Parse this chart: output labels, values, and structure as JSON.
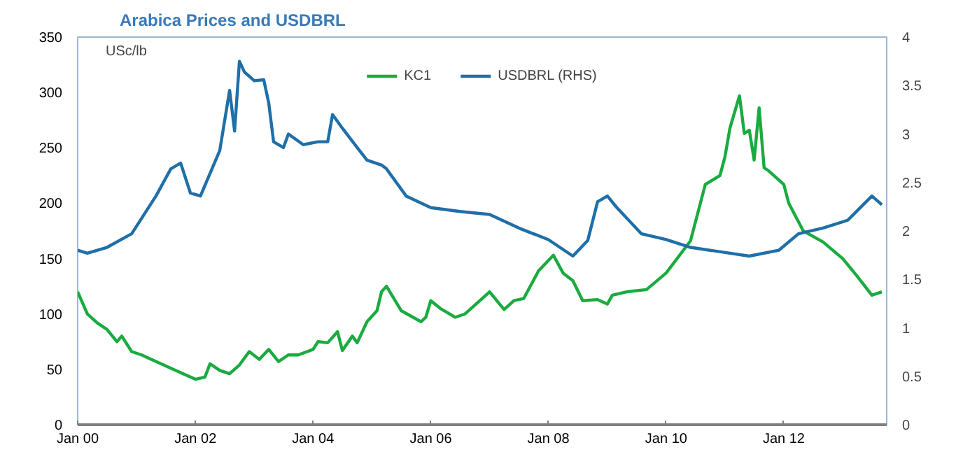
{
  "chart_data": {
    "type": "line",
    "title": "Arabica Prices and USDBRL",
    "ylabel": "USc/lb",
    "xlim": [
      "2000-01",
      "2013-10"
    ],
    "xticks": [
      {
        "value": "2000-01",
        "label": "Jan 00"
      },
      {
        "value": "2002-01",
        "label": "Jan 02"
      },
      {
        "value": "2004-01",
        "label": "Jan 04"
      },
      {
        "value": "2006-01",
        "label": "Jan 06"
      },
      {
        "value": "2008-01",
        "label": "Jan 08"
      },
      {
        "value": "2010-01",
        "label": "Jan 10"
      },
      {
        "value": "2012-01",
        "label": "Jan 12"
      }
    ],
    "ylim": [
      0,
      350
    ],
    "yticks": [
      0,
      50,
      100,
      150,
      200,
      250,
      300,
      350
    ],
    "y2lim": [
      0,
      4
    ],
    "y2ticks": [
      0,
      0.5,
      1,
      1.5,
      2,
      2.5,
      3,
      3.5,
      4
    ],
    "grid": false,
    "legend": "top",
    "marker": "none",
    "line_style": "solid",
    "series": [
      {
        "name": "KC1",
        "color": "#1aab40",
        "x": [
          "2000-01",
          "2000-03",
          "2000-05",
          "2000-07",
          "2000-09",
          "2000-10",
          "2000-12",
          "2001-02",
          "2001-04",
          "2001-07",
          "2001-11",
          "2002-01",
          "2002-03",
          "2002-04",
          "2002-06",
          "2002-08",
          "2002-10",
          "2002-12",
          "2003-02",
          "2003-04",
          "2003-06",
          "2003-08",
          "2003-10",
          "2004-01",
          "2004-02",
          "2004-04",
          "2004-06",
          "2004-07",
          "2004-09",
          "2004-10",
          "2004-12",
          "2005-02",
          "2005-03",
          "2005-04",
          "2005-07",
          "2005-11",
          "2005-12",
          "2006-01",
          "2006-03",
          "2006-06",
          "2006-08",
          "2006-10",
          "2007-01",
          "2007-04",
          "2007-06",
          "2007-08",
          "2007-11",
          "2008-02",
          "2008-04",
          "2008-06",
          "2008-08",
          "2008-11",
          "2009-01",
          "2009-02",
          "2009-05",
          "2009-09",
          "2010-01",
          "2010-06",
          "2010-09",
          "2010-12",
          "2011-01",
          "2011-02",
          "2011-04",
          "2011-05",
          "2011-06",
          "2011-07",
          "2011-08",
          "2011-09",
          "2011-10",
          "2012-01",
          "2012-02",
          "2012-05",
          "2012-09",
          "2013-01",
          "2013-04",
          "2013-07",
          "2013-09"
        ],
        "values": [
          120,
          100,
          92,
          86,
          75,
          80,
          66,
          63,
          59,
          53,
          45,
          41,
          43,
          55,
          49,
          46,
          54,
          66,
          59,
          68,
          57,
          63,
          63,
          68,
          75,
          74,
          84,
          67,
          80,
          74,
          93,
          103,
          120,
          125,
          103,
          93,
          97,
          112,
          105,
          97,
          100,
          108,
          120,
          104,
          112,
          114,
          139,
          153,
          137,
          130,
          112,
          113,
          109,
          117,
          120,
          122,
          137,
          166,
          217,
          225,
          242,
          268,
          297,
          263,
          266,
          239,
          286,
          232,
          229,
          217,
          200,
          175,
          165,
          150,
          134,
          117,
          120
        ]
      },
      {
        "name": "USDBRL (RHS)",
        "color": "#1f6fa8",
        "axis": "y2",
        "x": [
          "2000-01",
          "2000-03",
          "2000-07",
          "2000-12",
          "2001-05",
          "2001-08",
          "2001-10",
          "2001-12",
          "2002-02",
          "2002-06",
          "2002-08",
          "2002-09",
          "2002-10",
          "2002-11",
          "2003-01",
          "2003-03",
          "2003-04",
          "2003-05",
          "2003-07",
          "2003-08",
          "2003-11",
          "2004-02",
          "2004-04",
          "2004-05",
          "2004-07",
          "2004-10",
          "2004-12",
          "2005-03",
          "2005-04",
          "2005-08",
          "2006-01",
          "2006-07",
          "2007-01",
          "2007-07",
          "2008-01",
          "2008-06",
          "2008-09",
          "2008-11",
          "2009-01",
          "2009-03",
          "2009-08",
          "2010-01",
          "2010-06",
          "2011-02",
          "2011-06",
          "2011-12",
          "2012-04",
          "2012-09",
          "2013-02",
          "2013-07",
          "2013-09"
        ],
        "values": [
          1.8,
          1.77,
          1.83,
          1.97,
          2.36,
          2.64,
          2.7,
          2.39,
          2.36,
          2.83,
          3.45,
          3.03,
          3.75,
          3.64,
          3.55,
          3.56,
          3.32,
          2.92,
          2.86,
          3.0,
          2.89,
          2.92,
          2.92,
          3.2,
          3.06,
          2.86,
          2.73,
          2.68,
          2.64,
          2.36,
          2.24,
          2.2,
          2.17,
          2.03,
          1.91,
          1.74,
          1.9,
          2.3,
          2.36,
          2.24,
          1.97,
          1.91,
          1.83,
          1.77,
          1.74,
          1.8,
          1.97,
          2.03,
          2.11,
          2.36,
          2.27
        ]
      }
    ]
  }
}
